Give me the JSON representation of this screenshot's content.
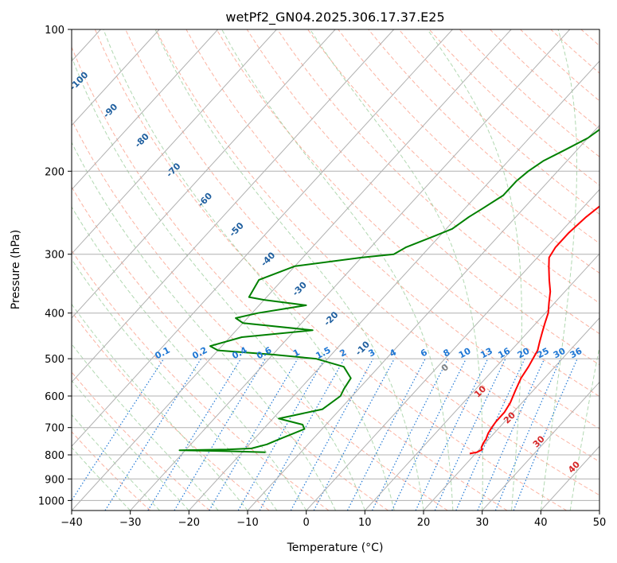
{
  "chart_data": {
    "type": "line",
    "title": "wetPf2_GN04.2025.306.17.37.E25",
    "xlabel": "Temperature (°C)",
    "ylabel": "Pressure (hPa)",
    "xlim": [
      -40,
      50
    ],
    "ylim": [
      1050,
      100
    ],
    "y_scale": "log",
    "x_ticks": [
      -40,
      -30,
      -20,
      -10,
      0,
      10,
      20,
      30,
      40,
      50
    ],
    "y_ticks": [
      100,
      200,
      300,
      400,
      500,
      600,
      700,
      800,
      900,
      1000
    ],
    "grid": true,
    "colors": {
      "temperature": "#ff0000",
      "dewpoint": "#008000",
      "isotherm": "#b0b0b0",
      "dry_adiabat": "#fa8064",
      "moist_adiabat": "#90c890",
      "mixing_ratio": "#1f77d4",
      "isotherm_label": "#1f5f9f",
      "dry_label": "#d62728",
      "ccl_label": "#808080"
    },
    "series": [
      {
        "key": "temperature",
        "points": [
          [
            19,
            795
          ],
          [
            20,
            790
          ],
          [
            20.5,
            780
          ],
          [
            20,
            770
          ],
          [
            19.7,
            755
          ],
          [
            19.5,
            740
          ],
          [
            19,
            720
          ],
          [
            18.7,
            700
          ],
          [
            18.5,
            680
          ],
          [
            18.5,
            650
          ],
          [
            18,
            620
          ],
          [
            17,
            585
          ],
          [
            16,
            550
          ],
          [
            15.5,
            520
          ],
          [
            15,
            500
          ],
          [
            14.5,
            480
          ],
          [
            13.5,
            460
          ],
          [
            12.5,
            440
          ],
          [
            11.5,
            420
          ],
          [
            10.5,
            400
          ],
          [
            9,
            380
          ],
          [
            7.5,
            360
          ],
          [
            5.5,
            340
          ],
          [
            3.5,
            320
          ],
          [
            2,
            305
          ],
          [
            1.5,
            290
          ],
          [
            1.5,
            270
          ],
          [
            2,
            250
          ],
          [
            3,
            230
          ],
          [
            4.5,
            210
          ],
          [
            5.5,
            195
          ],
          [
            5.5,
            180
          ],
          [
            5,
            170
          ],
          [
            5.5,
            160
          ],
          [
            7,
            150
          ],
          [
            8.5,
            140
          ],
          [
            9.5,
            130
          ],
          [
            10.5,
            120
          ],
          [
            11.5,
            110
          ],
          [
            12,
            103
          ],
          [
            12.5,
            100
          ]
        ]
      },
      {
        "key": "dewpoint",
        "points": [
          [
            -16,
            790
          ],
          [
            -22,
            786
          ],
          [
            -31,
            782
          ],
          [
            -23,
            779
          ],
          [
            -19,
            775
          ],
          [
            -17,
            760
          ],
          [
            -16,
            745
          ],
          [
            -13,
            705
          ],
          [
            -14,
            690
          ],
          [
            -19,
            670
          ],
          [
            -17,
            660
          ],
          [
            -13,
            640
          ],
          [
            -12,
            600
          ],
          [
            -12.5,
            580
          ],
          [
            -13,
            550
          ],
          [
            -16,
            520
          ],
          [
            -22,
            500
          ],
          [
            -30,
            490
          ],
          [
            -40,
            480
          ],
          [
            -42,
            470
          ],
          [
            -38,
            450
          ],
          [
            -27,
            435
          ],
          [
            -40,
            420
          ],
          [
            -42,
            410
          ],
          [
            -39,
            400
          ],
          [
            -32,
            385
          ],
          [
            -40,
            375
          ],
          [
            -43,
            370
          ],
          [
            -44,
            340
          ],
          [
            -40,
            318
          ],
          [
            -30,
            305
          ],
          [
            -25,
            300
          ],
          [
            -24,
            290
          ],
          [
            -21,
            275
          ],
          [
            -19,
            265
          ],
          [
            -18,
            250
          ],
          [
            -17,
            240
          ],
          [
            -15.5,
            225
          ],
          [
            -15.5,
            210
          ],
          [
            -15,
            200
          ],
          [
            -14,
            190
          ],
          [
            -12,
            180
          ],
          [
            -10,
            170
          ],
          [
            -9,
            160
          ],
          [
            -9.5,
            150
          ],
          [
            -9.5,
            140
          ],
          [
            -8,
            130
          ],
          [
            -6,
            120
          ],
          [
            -4,
            110
          ],
          [
            -2,
            102
          ],
          [
            -1.5,
            100
          ]
        ]
      }
    ],
    "isotherm_labels": [
      "-100",
      "-90",
      "-80",
      "-70",
      "-60",
      "-50",
      "-40",
      "-30",
      "-20",
      "-10"
    ],
    "mixing_ratio_labels": [
      "0.1",
      "0.2",
      "0.4",
      "0.6",
      "1",
      "1.5",
      "2",
      "3",
      "4",
      "6",
      "8",
      "10",
      "13",
      "16",
      "20",
      "25",
      "30",
      "36"
    ],
    "dry_adiabat_labels": [
      "0",
      "10",
      "20",
      "30",
      "40"
    ]
  }
}
